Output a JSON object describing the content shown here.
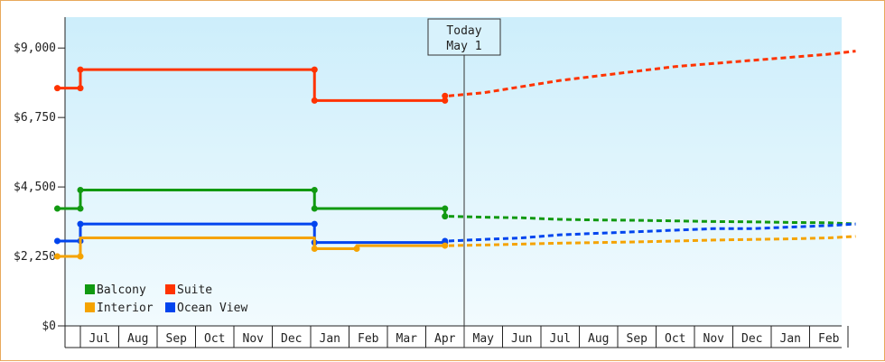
{
  "chart_data": {
    "type": "line",
    "title": "",
    "xlabel": "",
    "ylabel": "",
    "y_ticks": [
      "$0",
      "$2,250",
      "$4,500",
      "$6,750",
      "$9,000"
    ],
    "y_tick_values": [
      0,
      2250,
      4500,
      6750,
      9000
    ],
    "ylim": [
      0,
      10000
    ],
    "month_labels": [
      "Jul",
      "Aug",
      "Sep",
      "Oct",
      "Nov",
      "Dec",
      "Jan",
      "Feb",
      "Mar",
      "Apr",
      "May",
      "Jun",
      "Jul",
      "Aug",
      "Sep",
      "Oct",
      "Nov",
      "Dec",
      "Jan",
      "Feb"
    ],
    "grid": false,
    "legend_position": "bottom-left",
    "today_marker": {
      "line1": "Today",
      "line2": "May 1",
      "month_index": 10.0
    },
    "series": [
      {
        "name": "Suite",
        "color": "#ff3300",
        "history": [
          [
            -0.6,
            7700
          ],
          [
            0,
            7700
          ],
          [
            0,
            8300
          ],
          [
            6.1,
            8300
          ],
          [
            6.1,
            7300
          ],
          [
            9.5,
            7300
          ],
          [
            9.5,
            7450
          ]
        ],
        "history_markers": [
          [
            -0.6,
            7700
          ],
          [
            0,
            7700
          ],
          [
            0,
            8300
          ],
          [
            6.1,
            8300
          ],
          [
            6.1,
            7300
          ],
          [
            9.5,
            7300
          ],
          [
            9.5,
            7450
          ]
        ],
        "forecast": [
          [
            9.6,
            7450
          ],
          [
            10.5,
            7550
          ],
          [
            11.5,
            7750
          ],
          [
            12.5,
            7950
          ],
          [
            13.5,
            8100
          ],
          [
            14.5,
            8250
          ],
          [
            15.5,
            8400
          ],
          [
            16.5,
            8500
          ],
          [
            17.5,
            8600
          ],
          [
            18.5,
            8700
          ],
          [
            19.5,
            8800
          ],
          [
            20.2,
            8900
          ]
        ]
      },
      {
        "name": "Balcony",
        "color": "#119911",
        "history": [
          [
            -0.6,
            3800
          ],
          [
            0,
            3800
          ],
          [
            0,
            4400
          ],
          [
            6.1,
            4400
          ],
          [
            6.1,
            3800
          ],
          [
            9.5,
            3800
          ],
          [
            9.5,
            3550
          ]
        ],
        "history_markers": [
          [
            -0.6,
            3800
          ],
          [
            0,
            3800
          ],
          [
            0,
            4400
          ],
          [
            6.1,
            4400
          ],
          [
            6.1,
            3800
          ],
          [
            9.5,
            3800
          ],
          [
            9.5,
            3550
          ]
        ],
        "forecast": [
          [
            9.6,
            3550
          ],
          [
            10.5,
            3520
          ],
          [
            11.5,
            3500
          ],
          [
            12.5,
            3450
          ],
          [
            13.5,
            3430
          ],
          [
            14.5,
            3420
          ],
          [
            15.5,
            3400
          ],
          [
            16.5,
            3380
          ],
          [
            17.5,
            3370
          ],
          [
            18.5,
            3350
          ],
          [
            19.5,
            3340
          ],
          [
            20.2,
            3300
          ]
        ]
      },
      {
        "name": "Ocean View",
        "color": "#0044ee",
        "history": [
          [
            -0.6,
            2750
          ],
          [
            0,
            2750
          ],
          [
            0,
            3300
          ],
          [
            6.1,
            3300
          ],
          [
            6.1,
            2700
          ],
          [
            9.5,
            2700
          ],
          [
            9.5,
            2750
          ]
        ],
        "history_markers": [
          [
            -0.6,
            2750
          ],
          [
            0,
            2750
          ],
          [
            0,
            3300
          ],
          [
            6.1,
            3300
          ],
          [
            6.1,
            2700
          ],
          [
            9.5,
            2700
          ],
          [
            9.5,
            2750
          ]
        ],
        "forecast": [
          [
            9.6,
            2750
          ],
          [
            10.5,
            2800
          ],
          [
            11.5,
            2850
          ],
          [
            12.5,
            2950
          ],
          [
            13.5,
            3000
          ],
          [
            14.5,
            3050
          ],
          [
            15.5,
            3100
          ],
          [
            16.5,
            3150
          ],
          [
            17.5,
            3150
          ],
          [
            18.5,
            3200
          ],
          [
            19.5,
            3250
          ],
          [
            20.2,
            3300
          ]
        ]
      },
      {
        "name": "Interior",
        "color": "#f5a300",
        "history": [
          [
            -0.6,
            2250
          ],
          [
            0,
            2250
          ],
          [
            0,
            2850
          ],
          [
            6.1,
            2850
          ],
          [
            6.1,
            2500
          ],
          [
            7.2,
            2500
          ],
          [
            7.2,
            2600
          ],
          [
            9.5,
            2600
          ],
          [
            9.5,
            2600
          ]
        ],
        "history_markers": [
          [
            -0.6,
            2250
          ],
          [
            0,
            2250
          ],
          [
            6.1,
            2500
          ],
          [
            7.2,
            2500
          ],
          [
            9.5,
            2600
          ]
        ],
        "forecast": [
          [
            9.6,
            2600
          ],
          [
            10.5,
            2620
          ],
          [
            11.5,
            2650
          ],
          [
            12.5,
            2680
          ],
          [
            13.5,
            2700
          ],
          [
            14.5,
            2720
          ],
          [
            15.5,
            2750
          ],
          [
            16.5,
            2780
          ],
          [
            17.5,
            2800
          ],
          [
            18.5,
            2820
          ],
          [
            19.5,
            2850
          ],
          [
            20.2,
            2900
          ]
        ]
      }
    ],
    "legend": [
      {
        "name": "Balcony",
        "color": "#119911"
      },
      {
        "name": "Suite",
        "color": "#ff3300"
      },
      {
        "name": "Interior",
        "color": "#f5a300"
      },
      {
        "name": "Ocean View",
        "color": "#0044ee"
      }
    ]
  }
}
